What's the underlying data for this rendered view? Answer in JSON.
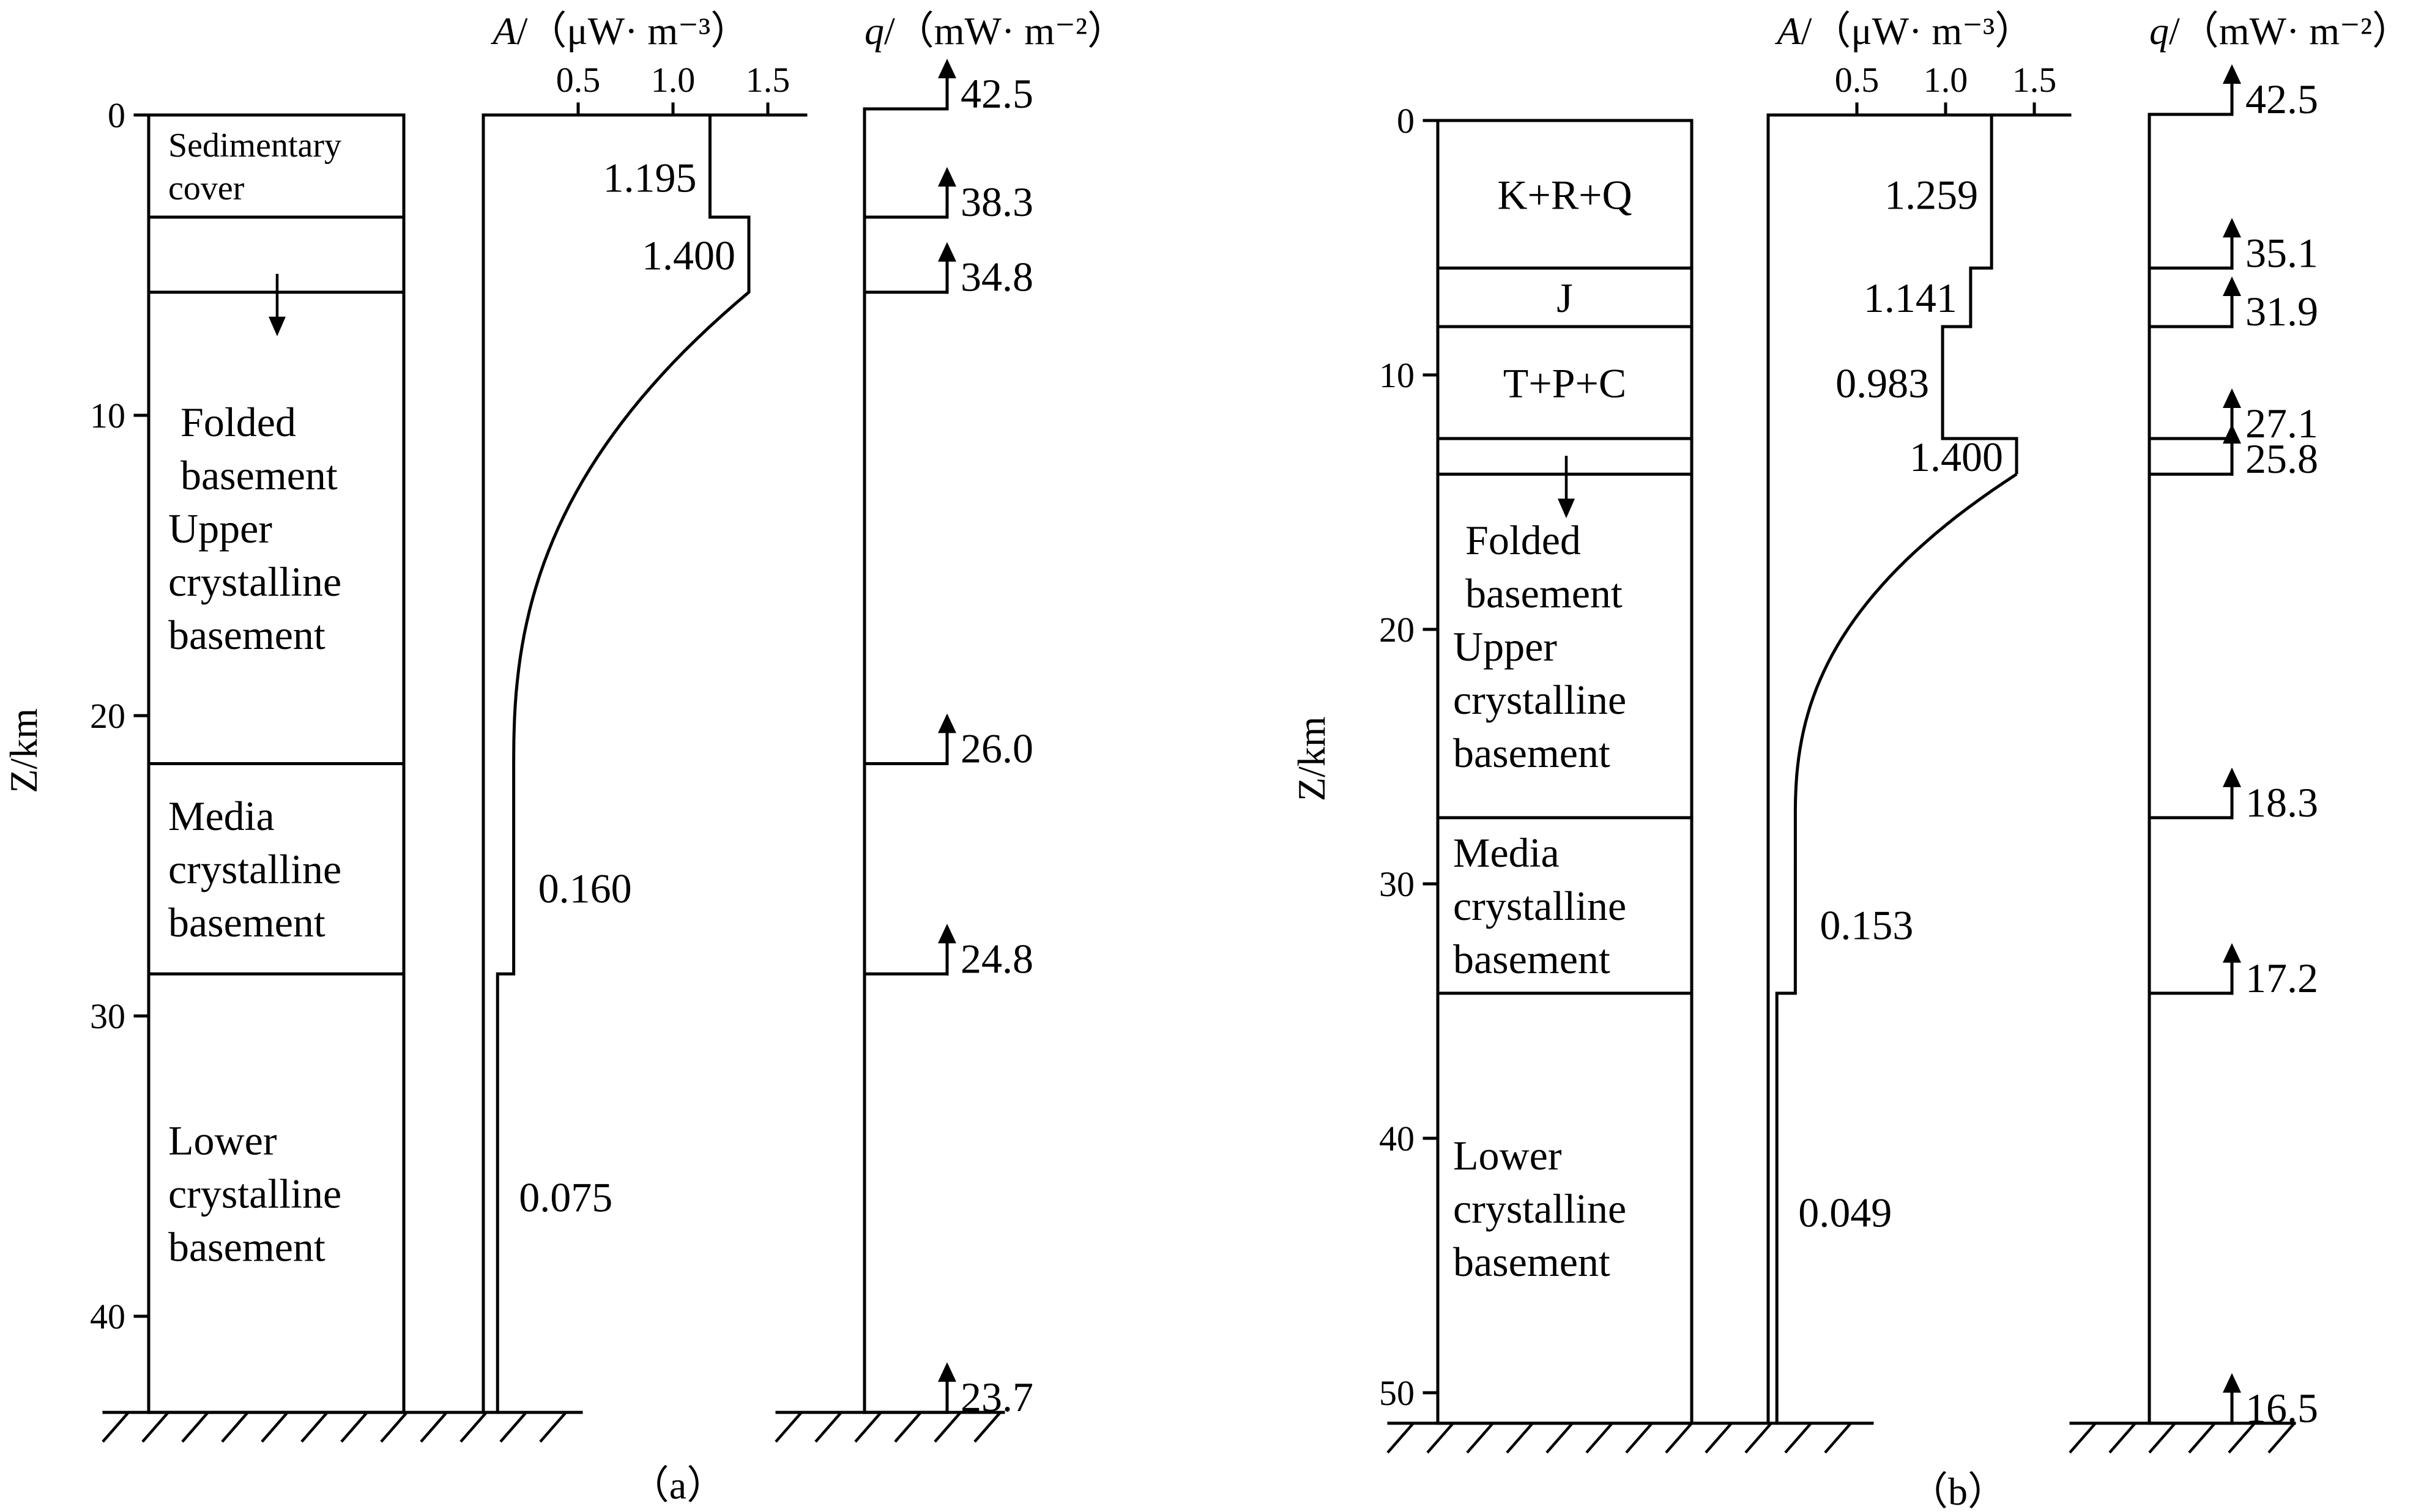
{
  "panels": [
    {
      "caption": "（a）",
      "depth_axis": {
        "label": "Z/km",
        "ticks": [
          0,
          10,
          20,
          30,
          40
        ],
        "max_depth": 43.2
      },
      "layers": [
        {
          "top": 0,
          "bottom": 3.4,
          "label": [
            "Sedimentary",
            "cover"
          ],
          "small": true
        },
        {
          "top": 3.4,
          "bottom": 5.9,
          "label": []
        },
        {
          "top": 5.9,
          "bottom": 21.6,
          "label": [
            "Folded",
            "basement",
            "Upper",
            "crystalline",
            "basement"
          ]
        },
        {
          "top": 21.6,
          "bottom": 28.6,
          "label": [
            "Media",
            "crystalline",
            "basement"
          ]
        },
        {
          "top": 28.6,
          "bottom": 43.2,
          "label": [
            "Lower",
            "crystalline",
            "basement"
          ]
        }
      ],
      "arrow_depth": 5.9,
      "heat_production": {
        "label_symbol": "A",
        "label_units": "/（μW· m⁻³）",
        "ticks": [
          0.5,
          1.0,
          1.5
        ],
        "tick_labels": [
          "0.5",
          "1.0",
          "1.5"
        ],
        "steps": [
          {
            "top": 0,
            "bottom": 3.4,
            "value": 1.195,
            "text": "1.195"
          },
          {
            "top": 3.4,
            "bottom": 5.9,
            "value": 1.4,
            "text": "1.400"
          }
        ],
        "decay_from": 5.9,
        "decay_to": 21.6,
        "mid_value": 0.16,
        "mid_text": "0.160",
        "mid_range": [
          21.6,
          28.6
        ],
        "low_value": 0.075,
        "low_text": "0.075",
        "low_range": [
          28.6,
          43.2
        ]
      },
      "heat_flow": {
        "label_symbol": "q",
        "label_units": "/（mW· m⁻²）",
        "points": [
          {
            "depth": 0,
            "value": 42.5,
            "text": "42.5"
          },
          {
            "depth": 3.4,
            "value": 38.3,
            "text": "38.3"
          },
          {
            "depth": 5.9,
            "value": 34.8,
            "text": "34.8"
          },
          {
            "depth": 21.6,
            "value": 26.0,
            "text": "26.0"
          },
          {
            "depth": 28.6,
            "value": 24.8,
            "text": "24.8"
          },
          {
            "depth": 43.2,
            "value": 23.7,
            "text": "23.7"
          }
        ]
      }
    },
    {
      "caption": "（b）",
      "depth_axis": {
        "label": "Z/km",
        "ticks": [
          0,
          10,
          20,
          30,
          40,
          50
        ],
        "max_depth": 51.2
      },
      "layers": [
        {
          "top": 0,
          "bottom": 5.8,
          "label": [
            "K+R+Q"
          ]
        },
        {
          "top": 5.8,
          "bottom": 8.1,
          "label": [
            "J"
          ]
        },
        {
          "top": 8.1,
          "bottom": 12.5,
          "label": [
            "T+P+C"
          ]
        },
        {
          "top": 12.5,
          "bottom": 13.9,
          "label": []
        },
        {
          "top": 13.9,
          "bottom": 27.4,
          "label": [
            "Folded",
            "basement",
            "Upper",
            "crystalline",
            "basement"
          ]
        },
        {
          "top": 27.4,
          "bottom": 34.3,
          "label": [
            "Media",
            "crystalline",
            "basement"
          ]
        },
        {
          "top": 34.3,
          "bottom": 51.2,
          "label": [
            "Lower",
            "crystalline",
            "basement"
          ]
        }
      ],
      "arrow_depth": 13.9,
      "heat_production": {
        "label_symbol": "A",
        "label_units": "/（μW· m⁻³）",
        "ticks": [
          0.5,
          1.0,
          1.5
        ],
        "tick_labels": [
          "0.5",
          "1.0",
          "1.5"
        ],
        "steps": [
          {
            "top": 0,
            "bottom": 5.8,
            "value": 1.259,
            "text": "1.259"
          },
          {
            "top": 5.8,
            "bottom": 8.1,
            "value": 1.141,
            "text": "1.141"
          },
          {
            "top": 8.1,
            "bottom": 12.5,
            "value": 0.983,
            "text": "0.983"
          },
          {
            "top": 12.5,
            "bottom": 13.9,
            "value": 1.4,
            "text": "1.400"
          }
        ],
        "decay_from": 13.9,
        "decay_to": 27.4,
        "mid_value": 0.153,
        "mid_text": "0.153",
        "mid_range": [
          27.4,
          34.3
        ],
        "low_value": 0.049,
        "low_text": "0.049",
        "low_range": [
          34.3,
          51.2
        ]
      },
      "heat_flow": {
        "label_symbol": "q",
        "label_units": "/（mW· m⁻²）",
        "points": [
          {
            "depth": 0,
            "value": 42.5,
            "text": "42.5"
          },
          {
            "depth": 5.8,
            "value": 35.1,
            "text": "35.1"
          },
          {
            "depth": 8.1,
            "value": 31.9,
            "text": "31.9"
          },
          {
            "depth": 12.5,
            "value": 27.1,
            "text": "27.1"
          },
          {
            "depth": 13.9,
            "value": 25.8,
            "text": "25.8"
          },
          {
            "depth": 27.4,
            "value": 18.3,
            "text": "18.3"
          },
          {
            "depth": 34.3,
            "value": 17.2,
            "text": "17.2"
          },
          {
            "depth": 51.2,
            "value": 16.5,
            "text": "16.5"
          }
        ]
      }
    }
  ]
}
